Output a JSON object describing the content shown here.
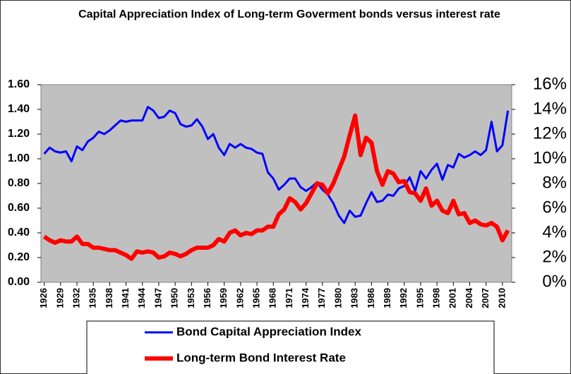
{
  "chart_data": {
    "type": "line",
    "title": "Capital Appreciation Index of Long-term Goverment bonds versus interest rate",
    "x": [
      1926,
      1927,
      1928,
      1929,
      1930,
      1931,
      1932,
      1933,
      1934,
      1935,
      1936,
      1937,
      1938,
      1939,
      1940,
      1941,
      1942,
      1943,
      1944,
      1945,
      1946,
      1947,
      1948,
      1949,
      1950,
      1951,
      1952,
      1953,
      1954,
      1955,
      1956,
      1957,
      1958,
      1959,
      1960,
      1961,
      1962,
      1963,
      1964,
      1965,
      1966,
      1967,
      1968,
      1969,
      1970,
      1971,
      1972,
      1973,
      1974,
      1975,
      1976,
      1977,
      1978,
      1979,
      1980,
      1981,
      1982,
      1983,
      1984,
      1985,
      1986,
      1987,
      1988,
      1989,
      1990,
      1991,
      1992,
      1993,
      1994,
      1995,
      1996,
      1997,
      1998,
      1999,
      2000,
      2001,
      2002,
      2003,
      2004,
      2005,
      2006,
      2007,
      2008,
      2009,
      2010,
      2011
    ],
    "xlim": [
      1925.4,
      2011.7
    ],
    "xticks": [
      1926,
      1929,
      1932,
      1935,
      1938,
      1941,
      1944,
      1947,
      1950,
      1953,
      1956,
      1959,
      1962,
      1965,
      1968,
      1971,
      1974,
      1977,
      1980,
      1983,
      1986,
      1989,
      1992,
      1995,
      1998,
      2001,
      2004,
      2007,
      2010
    ],
    "ylim": [
      0,
      1.6
    ],
    "yticks": [
      {
        "value": 0,
        "label": "0.00"
      },
      {
        "value": 0.2,
        "label": "0.20"
      },
      {
        "value": 0.4,
        "label": "0.40"
      },
      {
        "value": 0.6,
        "label": "0.60"
      },
      {
        "value": 0.8,
        "label": "0.80"
      },
      {
        "value": 1,
        "label": "1.00"
      },
      {
        "value": 1.2,
        "label": "1.20"
      },
      {
        "value": 1.4,
        "label": "1.40"
      },
      {
        "value": 1.6,
        "label": "1.60"
      }
    ],
    "y2lim": [
      0,
      16
    ],
    "y2ticks": [
      {
        "value": 0,
        "label": "0%"
      },
      {
        "value": 2,
        "label": "2%"
      },
      {
        "value": 4,
        "label": "4%"
      },
      {
        "value": 6,
        "label": "6%"
      },
      {
        "value": 8,
        "label": "8%"
      },
      {
        "value": 10,
        "label": "10%"
      },
      {
        "value": 12,
        "label": "12%"
      },
      {
        "value": 14,
        "label": "14%"
      },
      {
        "value": 16,
        "label": "16%"
      }
    ],
    "grid": false,
    "series": [
      {
        "name": "Bond Capital Appreciation Index",
        "color": "#0000ff",
        "values": [
          1.04,
          1.09,
          1.06,
          1.05,
          1.06,
          0.98,
          1.1,
          1.07,
          1.14,
          1.17,
          1.22,
          1.2,
          1.23,
          1.27,
          1.31,
          1.3,
          1.31,
          1.31,
          1.31,
          1.42,
          1.39,
          1.33,
          1.34,
          1.39,
          1.37,
          1.28,
          1.26,
          1.27,
          1.32,
          1.26,
          1.16,
          1.2,
          1.09,
          1.03,
          1.12,
          1.09,
          1.12,
          1.09,
          1.08,
          1.05,
          1.04,
          0.89,
          0.84,
          0.75,
          0.79,
          0.84,
          0.84,
          0.77,
          0.74,
          0.77,
          0.81,
          0.75,
          0.71,
          0.64,
          0.54,
          0.48,
          0.58,
          0.53,
          0.54,
          0.64,
          0.73,
          0.65,
          0.66,
          0.71,
          0.7,
          0.76,
          0.78,
          0.85,
          0.74,
          0.9,
          0.84,
          0.91,
          0.96,
          0.83,
          0.95,
          0.93,
          1.04,
          1.01,
          1.03,
          1.06,
          1.03,
          1.07,
          1.3,
          1.06,
          1.11,
          1.39
        ]
      },
      {
        "name": "Long-term Bond Interest Rate",
        "color": "#ff0000",
        "axis": "y2",
        "values": [
          3.7,
          3.4,
          3.2,
          3.4,
          3.3,
          3.3,
          3.7,
          3.1,
          3.1,
          2.8,
          2.8,
          2.7,
          2.6,
          2.6,
          2.4,
          2.2,
          1.9,
          2.5,
          2.4,
          2.5,
          2.4,
          2.0,
          2.1,
          2.4,
          2.3,
          2.1,
          2.3,
          2.6,
          2.8,
          2.8,
          2.8,
          3.0,
          3.5,
          3.3,
          4.0,
          4.2,
          3.8,
          4.0,
          3.9,
          4.2,
          4.2,
          4.5,
          4.5,
          5.5,
          5.9,
          6.8,
          6.5,
          5.9,
          6.4,
          7.2,
          8.0,
          7.9,
          7.2,
          8.0,
          9.1,
          10.2,
          11.9,
          13.5,
          10.3,
          11.7,
          11.3,
          9.0,
          7.9,
          9.0,
          8.8,
          8.1,
          8.2,
          7.3,
          7.2,
          6.6,
          7.6,
          6.2,
          6.6,
          5.8,
          5.6,
          6.6,
          5.5,
          5.6,
          4.8,
          5.0,
          4.7,
          4.6,
          4.8,
          4.5,
          3.4,
          4.2
        ]
      }
    ]
  }
}
